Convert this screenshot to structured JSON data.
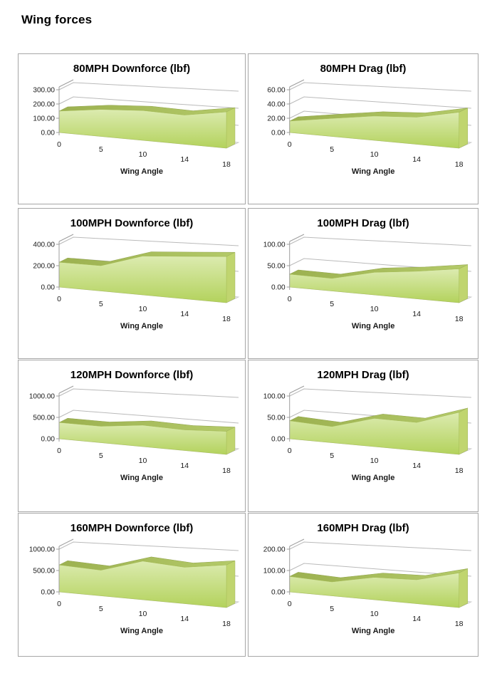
{
  "page": {
    "title": "Wing forces"
  },
  "chart_data": [
    {
      "type": "area",
      "style": "3d-area-green",
      "title": "80MPH Downforce (lbf)",
      "xlabel": "Wing Angle",
      "categories": [
        0,
        5,
        10,
        14,
        18
      ],
      "values": [
        150,
        180,
        190,
        178,
        212
      ],
      "ylim": [
        0,
        300
      ],
      "yticks": [
        0,
        100,
        200,
        300
      ],
      "ytick_labels": [
        "0.00",
        "100.00",
        "200.00",
        "300.00"
      ],
      "grid": true,
      "legend": "none"
    },
    {
      "type": "area",
      "style": "3d-area-green",
      "title": "80MPH Drag (lbf)",
      "xlabel": "Wing Angle",
      "categories": [
        0,
        5,
        10,
        14,
        18
      ],
      "values": [
        16,
        24,
        31,
        33,
        42
      ],
      "ylim": [
        0,
        60
      ],
      "yticks": [
        0,
        20,
        40,
        60
      ],
      "ytick_labels": [
        "0.00",
        "20.00",
        "40.00",
        "60.00"
      ],
      "grid": true,
      "legend": "none"
    },
    {
      "type": "area",
      "style": "3d-area-green",
      "title": "100MPH Downforce (lbf)",
      "xlabel": "Wing Angle",
      "categories": [
        0,
        5,
        10,
        14,
        18
      ],
      "values": [
        232,
        225,
        330,
        345,
        360
      ],
      "ylim": [
        0,
        400
      ],
      "yticks": [
        0,
        200,
        400
      ],
      "ytick_labels": [
        "0.00",
        "200.00",
        "400.00"
      ],
      "grid": true,
      "legend": "none"
    },
    {
      "type": "area",
      "style": "3d-area-green",
      "title": "100MPH Drag (lbf)",
      "xlabel": "Wing Angle",
      "categories": [
        0,
        5,
        10,
        14,
        18
      ],
      "values": [
        30,
        28,
        48,
        56,
        66
      ],
      "ylim": [
        0,
        100
      ],
      "yticks": [
        0,
        50,
        100
      ],
      "ytick_labels": [
        "0.00",
        "50.00",
        "100.00"
      ],
      "grid": true,
      "legend": "none"
    },
    {
      "type": "area",
      "style": "3d-area-green",
      "title": "120MPH Downforce (lbf)",
      "xlabel": "Wing Angle",
      "categories": [
        0,
        5,
        10,
        14,
        18
      ],
      "values": [
        380,
        365,
        455,
        420,
        450
      ],
      "ylim": [
        0,
        1000
      ],
      "yticks": [
        0,
        500,
        1000
      ],
      "ytick_labels": [
        "0.00",
        "500.00",
        "1000.00"
      ],
      "grid": true,
      "legend": "none"
    },
    {
      "type": "area",
      "style": "3d-area-green",
      "title": "120MPH Drag (lbf)",
      "xlabel": "Wing Angle",
      "categories": [
        0,
        5,
        10,
        14,
        18
      ],
      "values": [
        42,
        36,
        60,
        57,
        82
      ],
      "ylim": [
        0,
        100
      ],
      "yticks": [
        0,
        50,
        100
      ],
      "ytick_labels": [
        "0.00",
        "50.00",
        "100.00"
      ],
      "grid": true,
      "legend": "none"
    },
    {
      "type": "area",
      "style": "3d-area-green",
      "title": "160MPH Downforce (lbf)",
      "xlabel": "Wing Angle",
      "categories": [
        0,
        5,
        10,
        14,
        18
      ],
      "values": [
        630,
        570,
        820,
        740,
        830
      ],
      "ylim": [
        0,
        1000
      ],
      "yticks": [
        0,
        500,
        1000
      ],
      "ytick_labels": [
        "0.00",
        "500.00",
        "1000.00"
      ],
      "grid": true,
      "legend": "none"
    },
    {
      "type": "area",
      "style": "3d-area-green",
      "title": "160MPH Drag (lbf)",
      "xlabel": "Wing Angle",
      "categories": [
        0,
        5,
        10,
        14,
        18
      ],
      "values": [
        72,
        62,
        95,
        97,
        135
      ],
      "ylim": [
        0,
        200
      ],
      "yticks": [
        0,
        100,
        200
      ],
      "ytick_labels": [
        "0.00",
        "100.00",
        "200.00"
      ],
      "grid": true,
      "legend": "none"
    }
  ],
  "colors": {
    "area_face_top": "#dcebb0",
    "area_face_bottom": "#b3d25c",
    "area_ribbon_dark": "#9cb150",
    "area_ribbon_light": "#b4ca69",
    "area_side": "#c0d56f",
    "gridline": "#bababa",
    "axis": "#9d9d9d",
    "floor": "#ededed",
    "floor_edge": "#c4c4c4",
    "text": "#1a1a1a",
    "chart_border": "#a6a6a6"
  }
}
